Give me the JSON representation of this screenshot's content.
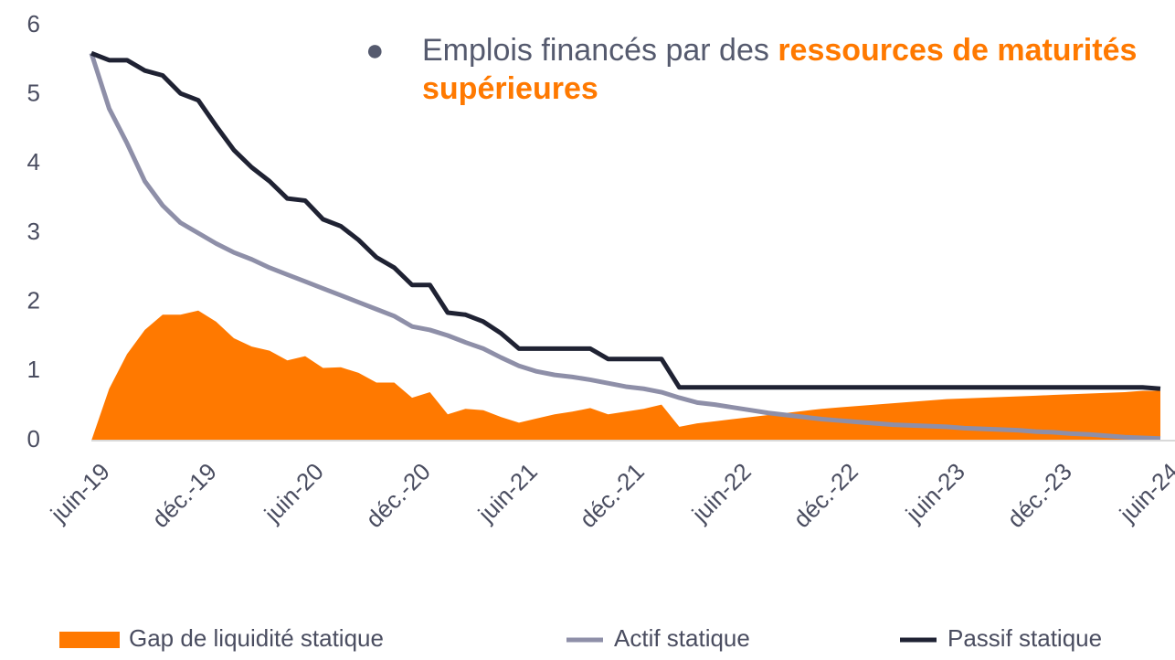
{
  "chart_data": {
    "type": "line",
    "annotation": {
      "text": "Emplois financés par des ",
      "highlight": "ressources de maturités supérieures"
    },
    "categories": [
      "juin-19",
      null,
      null,
      null,
      null,
      null,
      "déc.-19",
      null,
      null,
      null,
      null,
      null,
      "juin-20",
      null,
      null,
      null,
      null,
      null,
      "déc.-20",
      null,
      null,
      null,
      null,
      null,
      "juin-21",
      null,
      null,
      null,
      null,
      null,
      "déc.-21",
      null,
      null,
      null,
      null,
      null,
      "juin-22",
      null,
      null,
      null,
      null,
      null,
      "déc.-22",
      null,
      null,
      null,
      null,
      null,
      "juin-23",
      null,
      null,
      null,
      null,
      null,
      "déc.-23",
      null,
      null,
      null,
      null,
      null,
      "juin-24"
    ],
    "ylim": [
      0,
      6
    ],
    "yticks": [
      0,
      1,
      2,
      3,
      4,
      5,
      6
    ],
    "series": [
      {
        "name": "Gap de liquidité statique",
        "color": "#ff7900",
        "kind": "area",
        "values": [
          0,
          0.75,
          1.25,
          1.6,
          1.82,
          1.82,
          1.88,
          1.72,
          1.48,
          1.36,
          1.3,
          1.16,
          1.22,
          1.05,
          1.06,
          0.98,
          0.84,
          0.84,
          0.62,
          0.7,
          0.38,
          0.46,
          0.44,
          0.34,
          0.26,
          0.32,
          0.38,
          0.42,
          0.47,
          0.38,
          0.42,
          0.46,
          0.52,
          0.2,
          0.25,
          0.28,
          0.31,
          0.34,
          0.37,
          0.4,
          0.43,
          0.46,
          0.48,
          0.5,
          0.52,
          0.54,
          0.56,
          0.58,
          0.6,
          0.61,
          0.62,
          0.63,
          0.64,
          0.65,
          0.66,
          0.67,
          0.68,
          0.69,
          0.7,
          0.72,
          0.72
        ]
      },
      {
        "name": "Actif statique",
        "color": "#8e8fa8",
        "kind": "line",
        "values": [
          5.6,
          4.8,
          4.3,
          3.75,
          3.4,
          3.15,
          3.0,
          2.85,
          2.72,
          2.62,
          2.5,
          2.4,
          2.3,
          2.2,
          2.1,
          2.0,
          1.9,
          1.8,
          1.65,
          1.6,
          1.52,
          1.42,
          1.33,
          1.2,
          1.08,
          1.0,
          0.95,
          0.92,
          0.88,
          0.83,
          0.78,
          0.75,
          0.7,
          0.62,
          0.55,
          0.52,
          0.48,
          0.44,
          0.4,
          0.37,
          0.34,
          0.31,
          0.29,
          0.27,
          0.25,
          0.23,
          0.22,
          0.21,
          0.2,
          0.18,
          0.17,
          0.16,
          0.15,
          0.13,
          0.12,
          0.1,
          0.09,
          0.07,
          0.05,
          0.04,
          0.03
        ]
      },
      {
        "name": "Passif statique",
        "color": "#1f2233",
        "kind": "line",
        "values": [
          5.6,
          5.5,
          5.5,
          5.35,
          5.28,
          5.02,
          4.92,
          4.55,
          4.2,
          3.95,
          3.75,
          3.5,
          3.47,
          3.2,
          3.1,
          2.9,
          2.65,
          2.5,
          2.25,
          2.25,
          1.85,
          1.82,
          1.72,
          1.55,
          1.33,
          1.33,
          1.33,
          1.33,
          1.33,
          1.18,
          1.18,
          1.18,
          1.18,
          0.77,
          0.77,
          0.77,
          0.77,
          0.77,
          0.77,
          0.77,
          0.77,
          0.77,
          0.77,
          0.77,
          0.77,
          0.77,
          0.77,
          0.77,
          0.77,
          0.77,
          0.77,
          0.77,
          0.77,
          0.77,
          0.77,
          0.77,
          0.77,
          0.77,
          0.77,
          0.77,
          0.75
        ]
      }
    ]
  }
}
